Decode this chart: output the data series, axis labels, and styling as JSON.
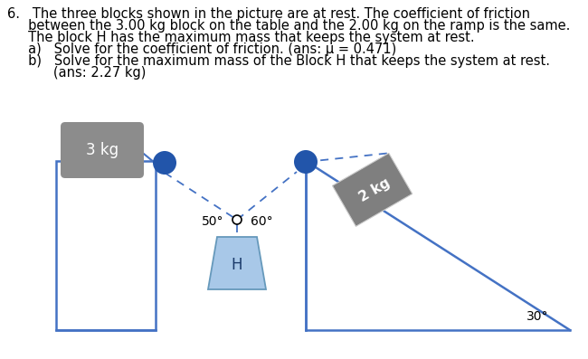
{
  "bg_color": "#ffffff",
  "table_color": "#4472c4",
  "block3kg_color": "#8c8c8c",
  "block2kg_color": "#7f7f7f",
  "blockH_color": "#a8c8e8",
  "blockH_edge": "#6699bb",
  "pulley_color": "#2255aa",
  "rope_color": "#4472c4",
  "ramp_color": "#4472c4",
  "text_color": "#000000",
  "mass3": "3 kg",
  "mass2": "2 kg",
  "massH": "H",
  "angle1_label": "50°",
  "angle2_label": "60°",
  "ramp_angle_label": "30°",
  "line1": "6.   The three blocks shown in the picture are at rest. The coefficient of friction",
  "line2": "     between the 3.00 kg block on the table and the 2.00 kg on the ramp is the same.",
  "line3": "     The block H has the maximum mass that keeps the system at rest.",
  "line4": "     a)   Solve for the coefficient of friction. (ans: μ = 0.471)",
  "line5": "     b)   Solve for the maximum mass of the Block H that keeps the system at rest.",
  "line6": "           (ans: 2.27 kg)"
}
